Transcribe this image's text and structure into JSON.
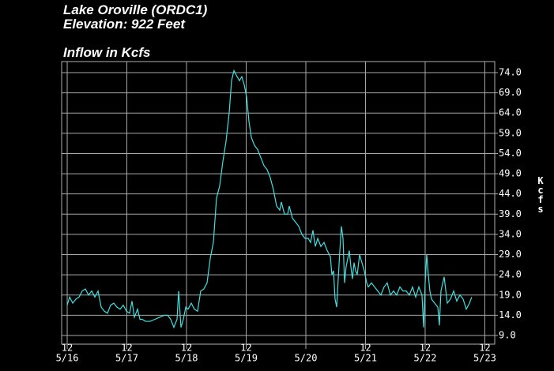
{
  "chart_data": {
    "type": "line",
    "title": "Lake Oroville (ORDC1)",
    "subtitle": "Elevation: 922 Feet",
    "chart_label": "Inflow in Kcfs",
    "y_label": "Kcfs",
    "color": "#3fe0e0",
    "grid": true,
    "xlim": [
      -0.093,
      7.166
    ],
    "ylim": [
      6.85,
      76.73
    ],
    "xticks": [
      {
        "value": 0,
        "label": "5/16",
        "hour": "12"
      },
      {
        "value": 1,
        "label": "5/17",
        "hour": "12"
      },
      {
        "value": 2,
        "label": "5/18",
        "hour": "12"
      },
      {
        "value": 3,
        "label": "5/19",
        "hour": "12"
      },
      {
        "value": 4,
        "label": "5/20"
      },
      {
        "value": 5,
        "label": "5/21",
        "hour": "12"
      },
      {
        "value": 6,
        "label": "5/22",
        "hour": "12"
      },
      {
        "value": 7,
        "label": "5/23",
        "hour": "12"
      }
    ],
    "yticks": [
      {
        "value": 74,
        "label": "74.0"
      },
      {
        "value": 69,
        "label": "69.0"
      },
      {
        "value": 64,
        "label": "64.0"
      },
      {
        "value": 59,
        "label": "59.0"
      },
      {
        "value": 54,
        "label": "54.0"
      },
      {
        "value": 49,
        "label": "49.0"
      },
      {
        "value": 44,
        "label": "44.0"
      },
      {
        "value": 39,
        "label": "39.0"
      },
      {
        "value": 34,
        "label": "34.0"
      },
      {
        "value": 29,
        "label": "29.0"
      },
      {
        "value": 24,
        "label": "24.0"
      },
      {
        "value": 19,
        "label": "19.0"
      },
      {
        "value": 14,
        "label": "14.0"
      },
      {
        "value": 9,
        "label": "9.0"
      }
    ],
    "x": [
      0,
      0.04,
      0.093,
      0.146,
      0.199,
      0.252,
      0.305,
      0.358,
      0.411,
      0.464,
      0.517,
      0.57,
      0.623,
      0.675,
      0.728,
      0.781,
      0.834,
      0.887,
      0.94,
      0.993,
      1.046,
      1.086,
      1.126,
      1.179,
      1.219,
      1.258,
      1.311,
      1.391,
      1.47,
      1.55,
      1.629,
      1.682,
      1.735,
      1.788,
      1.841,
      1.868,
      1.907,
      1.947,
      1.987,
      2.026,
      2.079,
      2.132,
      2.185,
      2.238,
      2.291,
      2.344,
      2.397,
      2.45,
      2.503,
      2.556,
      2.609,
      2.662,
      2.715,
      2.755,
      2.795,
      2.848,
      2.887,
      2.927,
      2.967,
      3.007,
      3.046,
      3.086,
      3.139,
      3.192,
      3.245,
      3.298,
      3.351,
      3.404,
      3.457,
      3.51,
      3.563,
      3.589,
      3.642,
      3.695,
      3.722,
      3.775,
      3.828,
      3.881,
      3.934,
      3.987,
      4.04,
      4.079,
      4.119,
      4.159,
      4.199,
      4.252,
      4.305,
      4.358,
      4.411,
      4.437,
      4.464,
      4.49,
      4.517,
      4.543,
      4.57,
      4.596,
      4.623,
      4.649,
      4.675,
      4.702,
      4.728,
      4.755,
      4.781,
      4.808,
      4.834,
      4.861,
      4.901,
      4.94,
      4.98,
      5.02,
      5.046,
      5.099,
      5.152,
      5.205,
      5.258,
      5.311,
      5.364,
      5.417,
      5.47,
      5.523,
      5.576,
      5.629,
      5.682,
      5.735,
      5.788,
      5.841,
      5.894,
      5.947,
      5.974,
      6.0,
      6.026,
      6.053,
      6.079,
      6.106,
      6.159,
      6.212,
      6.238,
      6.265,
      6.318,
      6.371,
      6.424,
      6.477,
      6.53,
      6.583,
      6.636,
      6.689,
      6.742,
      6.781
    ],
    "values": [
      16.5,
      18.5,
      17,
      18,
      18.5,
      20,
      20.5,
      19,
      20,
      18.5,
      20,
      16,
      15,
      14.5,
      16.5,
      17,
      16,
      15.5,
      16.5,
      15,
      14.5,
      17.5,
      13.5,
      15.5,
      13,
      13,
      12.5,
      12.5,
      13,
      13.5,
      14,
      14,
      13,
      11,
      13,
      20,
      11,
      13,
      16,
      15.5,
      17,
      15.5,
      15,
      20,
      20.5,
      22,
      28,
      32,
      43,
      46,
      52,
      57,
      64,
      72,
      74.5,
      73,
      72,
      73,
      71,
      68,
      62,
      58,
      56,
      55,
      53,
      51,
      50,
      48,
      45,
      41,
      40,
      42,
      39,
      39,
      41,
      38,
      37,
      36,
      34,
      33,
      33,
      32,
      35,
      31,
      33,
      31,
      32,
      30,
      28.5,
      24,
      25,
      18,
      16,
      23,
      30,
      36,
      33,
      22,
      26,
      28,
      30,
      26,
      23,
      27,
      25,
      24,
      29,
      27,
      25,
      22,
      21,
      22,
      21,
      20,
      19,
      21,
      22,
      19,
      20,
      19,
      21,
      20,
      20,
      19,
      21,
      18.5,
      21,
      19,
      11,
      22,
      29,
      24,
      20,
      18,
      17,
      16,
      11.5,
      20,
      23.5,
      17,
      18,
      20,
      17.5,
      19,
      18,
      15.5,
      17,
      18.5
    ]
  }
}
